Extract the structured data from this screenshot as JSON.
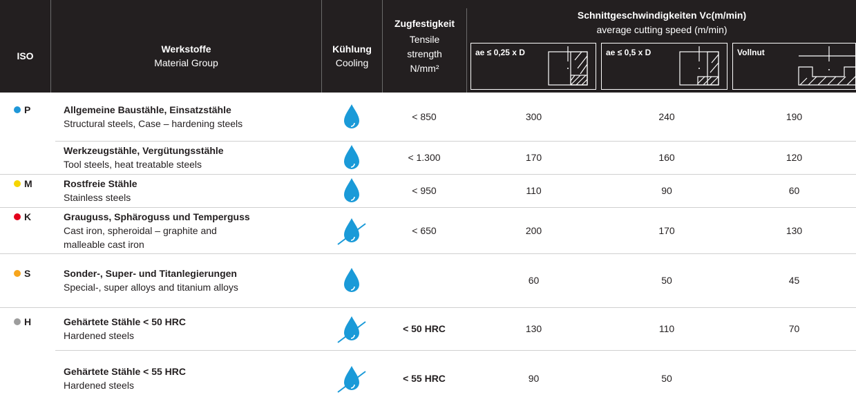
{
  "header": {
    "iso": "ISO",
    "material": {
      "de": "Werkstoffe",
      "en": "Material Group"
    },
    "cooling": {
      "de": "Kühlung",
      "en": "Cooling"
    },
    "tensile": {
      "de": "Zugfestigkeit",
      "en": "Tensile strength",
      "unit": "N/mm²"
    },
    "speed": {
      "de": "Schnittgeschwindigkeiten Vc(m/min)",
      "en": "average cutting speed (m/min)",
      "columns": [
        "ae ≤ 0,25 x D",
        "ae ≤ 0,5 x D",
        "Vollnut"
      ]
    }
  },
  "rows": [
    {
      "iso": "P",
      "iso_color": "#1f97d8",
      "de": "Allgemeine Baustähle, Einsatzstähle",
      "en": "Structural steels, Case – hardening steels",
      "coolant": true,
      "tensile": "< 850",
      "speeds": [
        300,
        240,
        190
      ]
    },
    {
      "iso": null,
      "iso_color": null,
      "de": "Werkzeugstähle, Vergütungsstähle",
      "en": "Tool steels, heat treatable steels",
      "coolant": true,
      "tensile": "< 1.300",
      "speeds": [
        170,
        160,
        120
      ]
    },
    {
      "iso": "M",
      "iso_color": "#f6d500",
      "de": "Rostfreie Stähle",
      "en": "Stainless steels",
      "coolant": true,
      "tensile": "< 950",
      "speeds": [
        110,
        90,
        60
      ]
    },
    {
      "iso": "K",
      "iso_color": "#e3001b",
      "de": "Grauguss, Sphäroguss und Temperguss",
      "en": "Cast iron, spheroidal – graphite and malleable cast iron",
      "coolant": false,
      "tensile": "< 650",
      "speeds": [
        200,
        170,
        130
      ]
    },
    {
      "iso": "S",
      "iso_color": "#f7a51c",
      "de": "Sonder-, Super- und Titanlegierungen",
      "en": "Special-, super alloys  and titanium alloys",
      "coolant": true,
      "tensile": null,
      "speeds": [
        60,
        50,
        45
      ]
    },
    {
      "iso": "H",
      "iso_color": "#9d9d9d",
      "de": "Gehärtete Stähle < 50 HRC",
      "en": "Hardened steels",
      "coolant": false,
      "tensile": "< 50 HRC",
      "tensile_bold": true,
      "speeds": [
        130,
        110,
        70
      ]
    },
    {
      "iso": null,
      "iso_color": null,
      "de": "Gehärtete Stähle < 55 HRC",
      "en": "Hardened steels",
      "coolant": false,
      "tensile": "< 55 HRC",
      "tensile_bold": true,
      "speeds": [
        90,
        50,
        null
      ]
    }
  ]
}
